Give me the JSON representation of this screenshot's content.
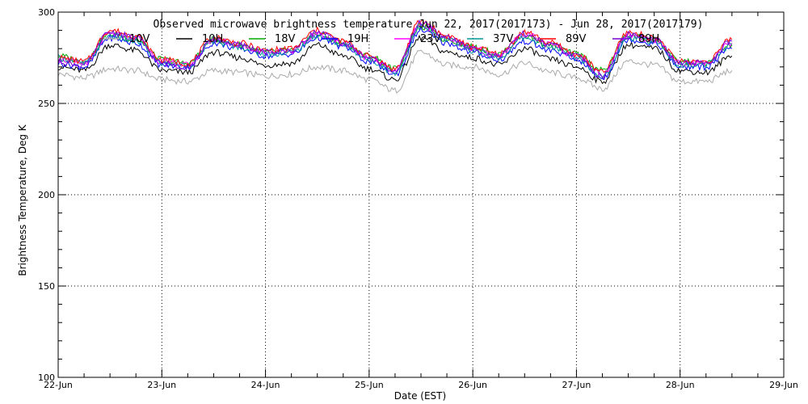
{
  "chart_data": {
    "type": "line",
    "title": "Observed microwave brightness temperature Jun 22, 2017(2017173) - Jun 28, 2017(2017179)",
    "xlabel": "Date (EST)",
    "ylabel": "Brightness Temperature, Deg K",
    "ylim": [
      100,
      300
    ],
    "xlim": [
      "22-Jun",
      "29-Jun"
    ],
    "x_ticks": [
      "22-Jun",
      "23-Jun",
      "24-Jun",
      "25-Jun",
      "26-Jun",
      "27-Jun",
      "28-Jun",
      "29-Jun"
    ],
    "y_ticks": [
      100,
      150,
      200,
      250,
      300
    ],
    "grid": true,
    "legend_position": "top",
    "x": [
      "22-Jun 00h",
      "22-Jun 06h",
      "22-Jun 12h",
      "22-Jun 18h",
      "23-Jun 00h",
      "23-Jun 06h",
      "23-Jun 12h",
      "23-Jun 18h",
      "24-Jun 00h",
      "24-Jun 06h",
      "24-Jun 12h",
      "24-Jun 18h",
      "25-Jun 00h",
      "25-Jun 06h",
      "25-Jun 12h",
      "25-Jun 18h",
      "26-Jun 00h",
      "26-Jun 06h",
      "26-Jun 12h",
      "26-Jun 18h",
      "27-Jun 00h",
      "27-Jun 06h",
      "27-Jun 12h",
      "27-Jun 18h",
      "28-Jun 00h",
      "28-Jun 06h",
      "28-Jun 12h"
    ],
    "series": [
      {
        "name": "10V",
        "color": "#aaaaaa",
        "values": [
          266,
          264,
          269,
          268,
          263,
          262,
          268,
          267,
          265,
          266,
          270,
          268,
          263,
          257,
          278,
          271,
          270,
          266,
          272,
          267,
          264,
          258,
          273,
          271,
          262,
          262,
          268
        ]
      },
      {
        "name": "10H",
        "color": "#000000",
        "values": [
          270,
          268,
          282,
          279,
          268,
          267,
          278,
          275,
          271,
          272,
          282,
          276,
          269,
          263,
          286,
          278,
          275,
          271,
          280,
          274,
          270,
          262,
          282,
          280,
          268,
          267,
          276
        ]
      },
      {
        "name": "18V",
        "color": "#00aa00",
        "values": [
          276,
          273,
          288,
          285,
          274,
          272,
          285,
          282,
          278,
          279,
          288,
          283,
          276,
          269,
          292,
          285,
          281,
          277,
          287,
          282,
          277,
          268,
          287,
          285,
          273,
          272,
          282
        ]
      },
      {
        "name": "19H",
        "color": "#0000ff",
        "values": [
          272,
          270,
          286,
          283,
          271,
          270,
          283,
          280,
          276,
          277,
          286,
          281,
          273,
          266,
          290,
          283,
          278,
          274,
          284,
          279,
          274,
          264,
          285,
          283,
          270,
          270,
          280
        ]
      },
      {
        "name": "23V",
        "color": "#ff00ff",
        "values": [
          274,
          272,
          288,
          286,
          273,
          271,
          285,
          282,
          278,
          279,
          288,
          283,
          275,
          268,
          293,
          286,
          280,
          276,
          288,
          282,
          276,
          266,
          287,
          285,
          272,
          272,
          283
        ]
      },
      {
        "name": "37V",
        "color": "#009999",
        "values": [
          275,
          272,
          287,
          284,
          272,
          271,
          284,
          281,
          277,
          278,
          287,
          282,
          274,
          267,
          292,
          285,
          279,
          275,
          286,
          281,
          275,
          265,
          286,
          284,
          271,
          271,
          282
        ]
      },
      {
        "name": "89V",
        "color": "#ff0000",
        "values": [
          275,
          273,
          290,
          287,
          274,
          272,
          286,
          283,
          279,
          280,
          290,
          284,
          276,
          269,
          295,
          287,
          281,
          277,
          289,
          283,
          277,
          267,
          289,
          286,
          273,
          273,
          285
        ]
      },
      {
        "name": "89H",
        "color": "#7700dd",
        "values": [
          273,
          271,
          289,
          286,
          272,
          270,
          285,
          282,
          278,
          279,
          289,
          283,
          275,
          268,
          294,
          286,
          280,
          276,
          288,
          282,
          276,
          265,
          288,
          285,
          272,
          272,
          284
        ]
      }
    ]
  }
}
